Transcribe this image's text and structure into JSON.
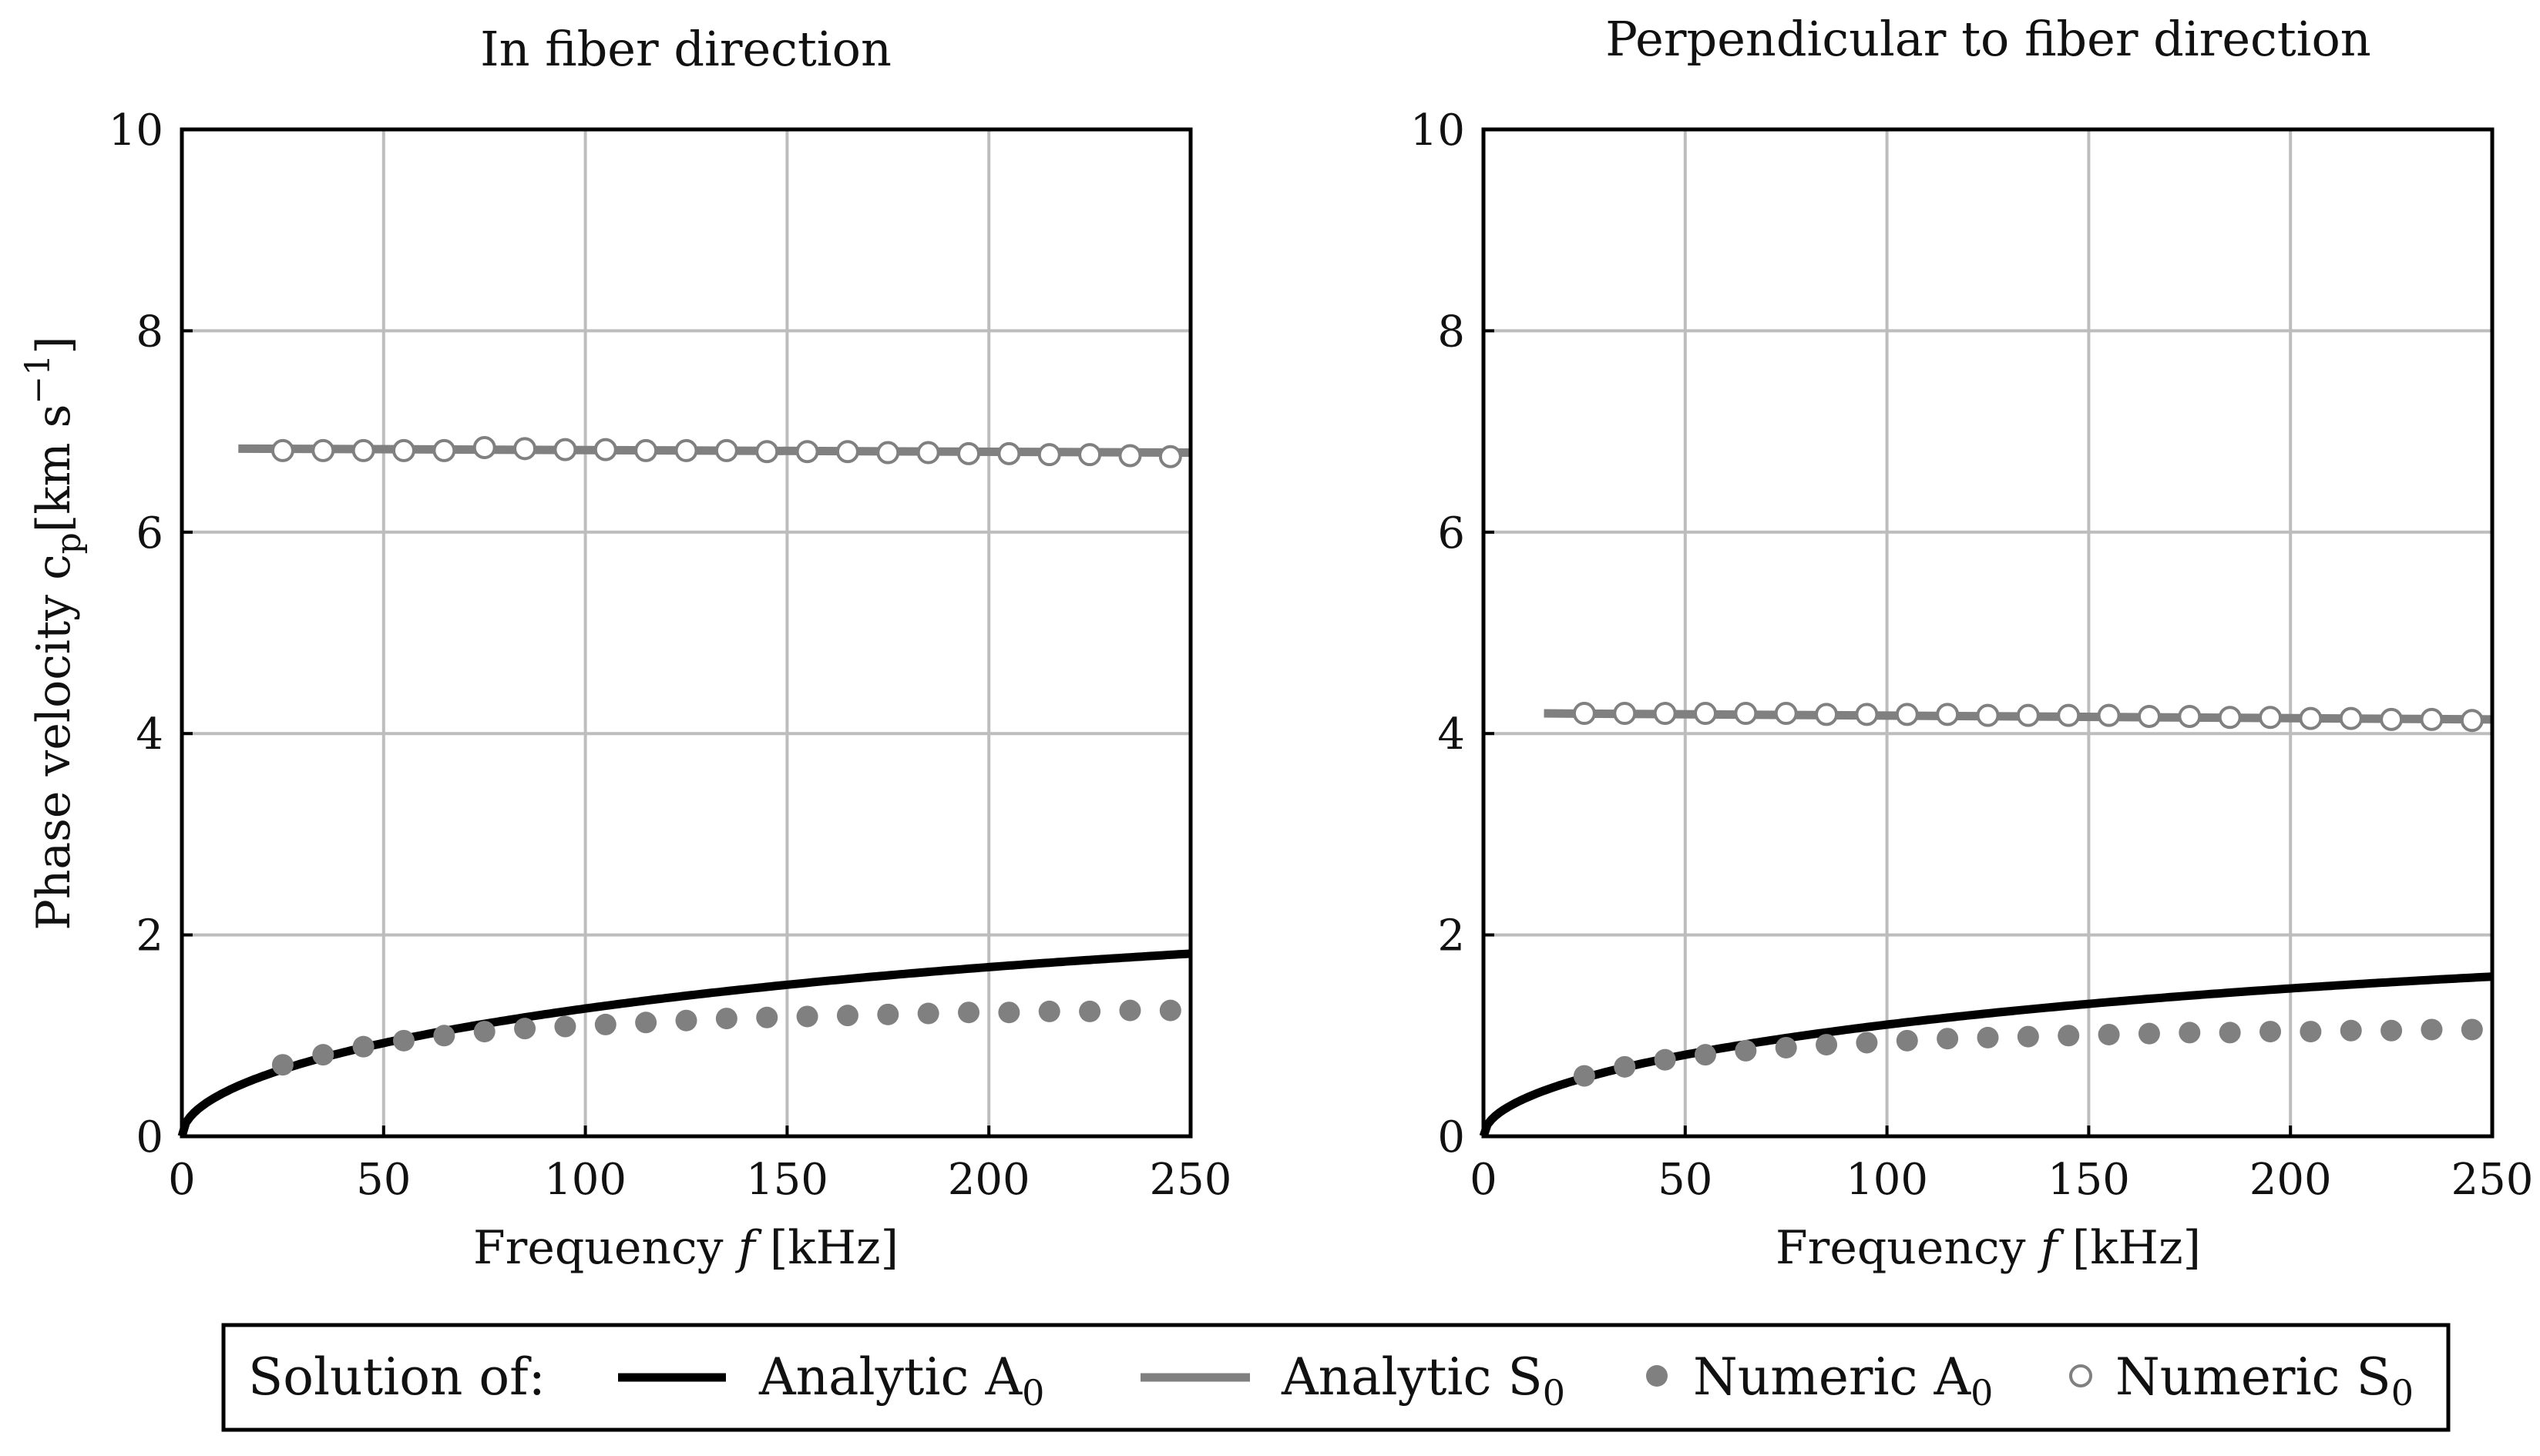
{
  "colors": {
    "analytic_a0": "#000000",
    "analytic_s0": "#808080",
    "numeric_a0": "#808080",
    "numeric_s0_fill": "#ffffff",
    "numeric_s0_stroke": "#808080",
    "grid": "#bdbdbd"
  },
  "legend": {
    "prefix": "Solution of:",
    "entries": [
      {
        "label": "Analytic A",
        "sub": "0",
        "kind": "line-black"
      },
      {
        "label": "Analytic S",
        "sub": "0",
        "kind": "line-gray"
      },
      {
        "label": "Numeric A",
        "sub": "0",
        "kind": "marker-filled"
      },
      {
        "label": "Numeric S",
        "sub": "0",
        "kind": "marker-open"
      }
    ]
  },
  "chart_data": [
    {
      "type": "line",
      "title": "In fiber direction",
      "xlabel": "Frequency f [kHz]",
      "ylabel": "Phase velocity c_p [km s^-1]",
      "ylabel_parts": {
        "main": "Phase velocity c",
        "sub": "p",
        "unit": "[km s",
        "sup": "−1",
        "close": "]"
      },
      "xlabel_parts": {
        "main": "Frequency ",
        "var": "f",
        "unit": " [kHz]"
      },
      "xlim": [
        0,
        250
      ],
      "ylim": [
        0,
        10
      ],
      "xticks": [
        0,
        50,
        100,
        150,
        200,
        250
      ],
      "yticks": [
        0,
        2,
        4,
        6,
        8,
        10
      ],
      "grid": true,
      "analytic_a0": {
        "coef": 0.135,
        "range": [
          0,
          250
        ]
      },
      "analytic_s0": {
        "x": [
          14,
          250
        ],
        "y": [
          6.83,
          6.79
        ]
      },
      "numeric_a0": {
        "x": [
          25,
          35,
          45,
          55,
          65,
          75,
          85,
          95,
          105,
          115,
          125,
          135,
          145,
          155,
          165,
          175,
          185,
          195,
          205,
          215,
          225,
          235,
          245
        ],
        "y": [
          0.71,
          0.81,
          0.89,
          0.95,
          1.0,
          1.04,
          1.07,
          1.09,
          1.11,
          1.13,
          1.15,
          1.17,
          1.18,
          1.19,
          1.2,
          1.21,
          1.22,
          1.23,
          1.23,
          1.24,
          1.24,
          1.25,
          1.25
        ]
      },
      "numeric_s0": {
        "x": [
          25,
          35,
          45,
          55,
          65,
          75,
          85,
          95,
          105,
          115,
          125,
          135,
          145,
          155,
          165,
          175,
          185,
          195,
          205,
          215,
          225,
          235,
          245
        ],
        "y": [
          6.81,
          6.81,
          6.81,
          6.81,
          6.81,
          6.84,
          6.83,
          6.82,
          6.82,
          6.81,
          6.81,
          6.81,
          6.8,
          6.8,
          6.8,
          6.79,
          6.79,
          6.78,
          6.78,
          6.77,
          6.77,
          6.76,
          6.75
        ]
      }
    },
    {
      "type": "line",
      "title": "Perpendicular to fiber direction",
      "xlabel": "Frequency f [kHz]",
      "xlabel_parts": {
        "main": "Frequency ",
        "var": "f",
        "unit": " [kHz]"
      },
      "xlim": [
        0,
        250
      ],
      "ylim": [
        0,
        10
      ],
      "xticks": [
        0,
        50,
        100,
        150,
        200,
        250
      ],
      "yticks": [
        0,
        2,
        4,
        6,
        8,
        10
      ],
      "grid": true,
      "analytic_a0": {
        "coef": 0.118,
        "range": [
          0,
          250
        ]
      },
      "analytic_s0": {
        "x": [
          15,
          250
        ],
        "y": [
          4.2,
          4.14
        ]
      },
      "numeric_a0": {
        "x": [
          25,
          35,
          45,
          55,
          65,
          75,
          85,
          95,
          105,
          115,
          125,
          135,
          145,
          155,
          165,
          175,
          185,
          195,
          205,
          215,
          225,
          235,
          245
        ],
        "y": [
          0.6,
          0.69,
          0.76,
          0.81,
          0.85,
          0.88,
          0.91,
          0.93,
          0.95,
          0.97,
          0.98,
          0.99,
          1.0,
          1.01,
          1.02,
          1.03,
          1.03,
          1.04,
          1.04,
          1.05,
          1.05,
          1.06,
          1.06
        ]
      },
      "numeric_s0": {
        "x": [
          25,
          35,
          45,
          55,
          65,
          75,
          85,
          95,
          105,
          115,
          125,
          135,
          145,
          155,
          165,
          175,
          185,
          195,
          205,
          215,
          225,
          235,
          245
        ],
        "y": [
          4.2,
          4.2,
          4.2,
          4.2,
          4.2,
          4.2,
          4.19,
          4.19,
          4.19,
          4.19,
          4.18,
          4.18,
          4.18,
          4.18,
          4.17,
          4.17,
          4.16,
          4.16,
          4.15,
          4.15,
          4.14,
          4.14,
          4.13
        ]
      }
    }
  ]
}
